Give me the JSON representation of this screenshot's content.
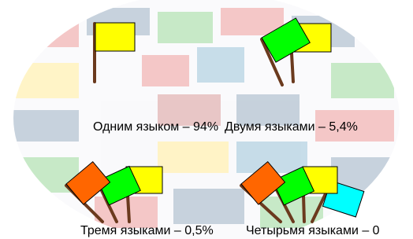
{
  "groups": [
    {
      "label": "Одним языком – 94%"
    },
    {
      "label": "Двумя языками – 5,4%"
    },
    {
      "label": "Тремя языками – 0,5%"
    },
    {
      "label": "Четырьмя языками – 0"
    }
  ]
}
